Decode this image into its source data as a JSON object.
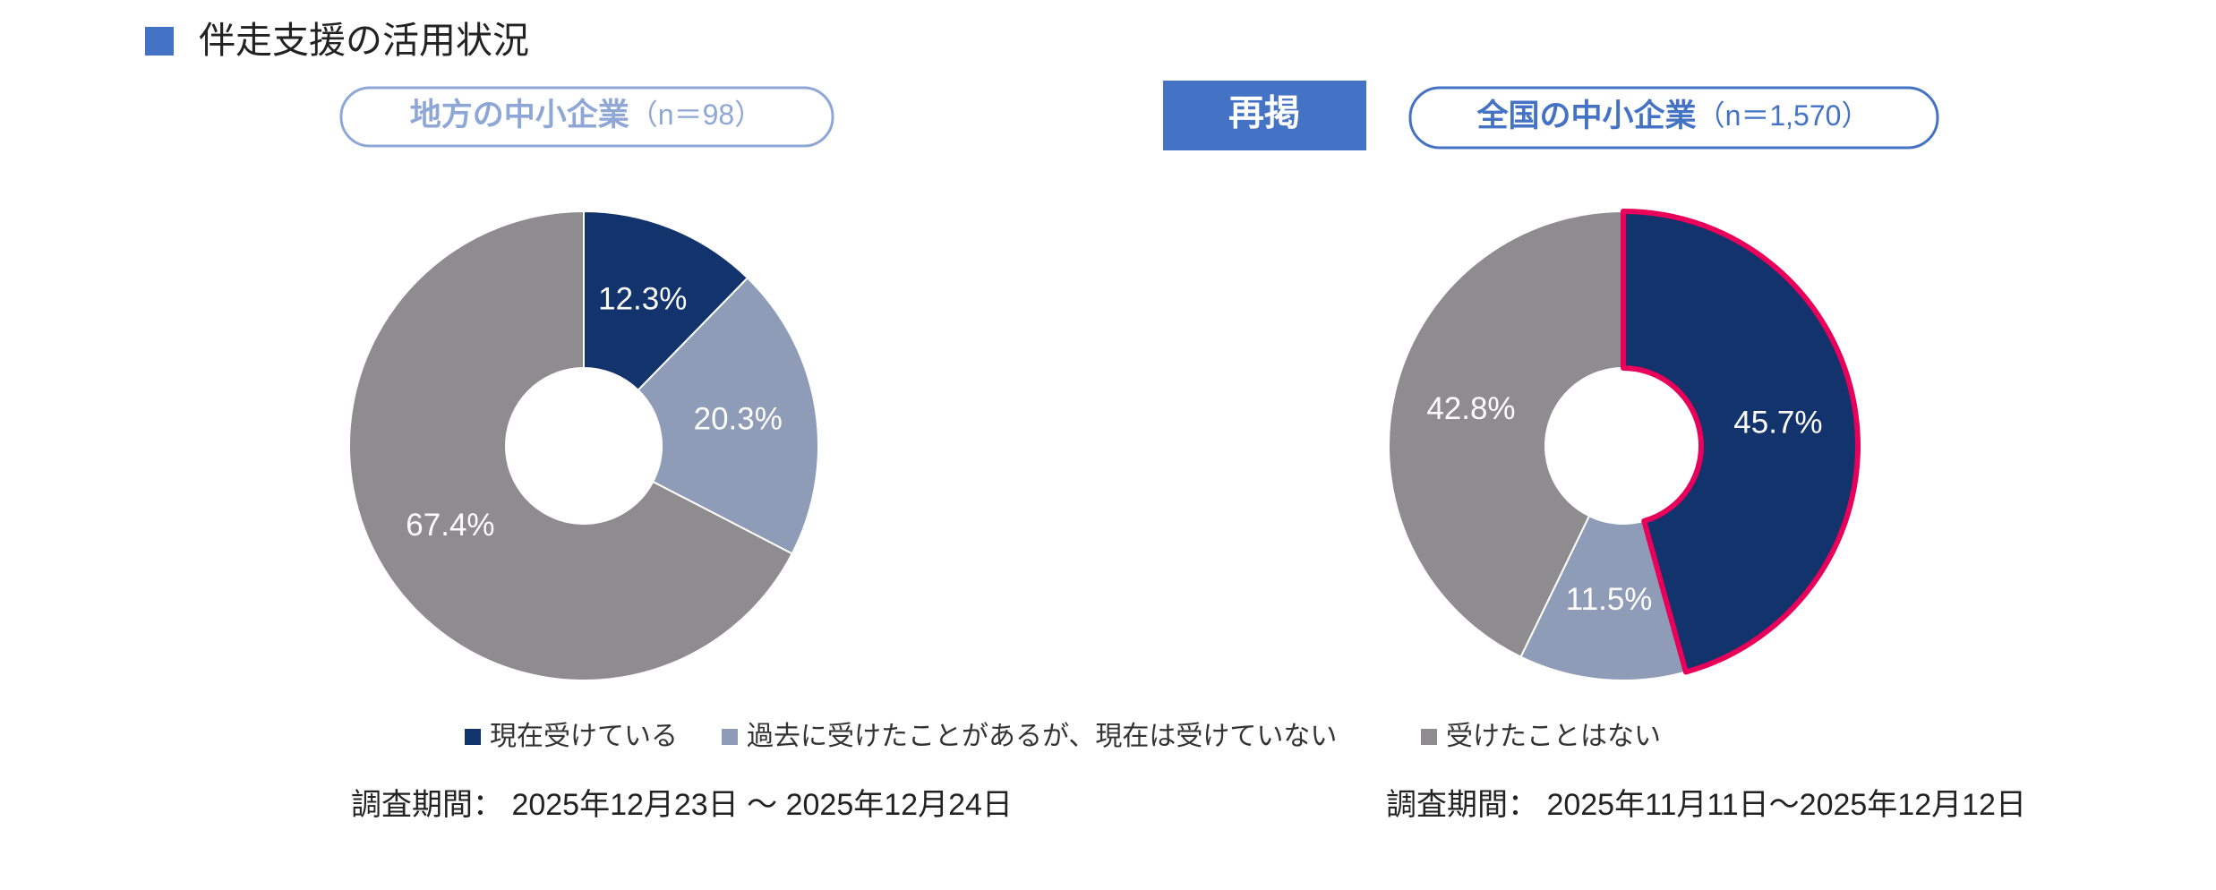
{
  "header": {
    "title": "伴走支援の活用状況"
  },
  "chart_data": [
    {
      "type": "pie",
      "title": "地方の中小企業",
      "subtitle": "（n＝98）",
      "categories": [
        "現在受けている",
        "過去に受けたことがあるが、現在は受けていない",
        "受けたことはない"
      ],
      "values": [
        12.3,
        20.3,
        67.4
      ],
      "value_labels": [
        "12.3%",
        "20.3%",
        "67.4%"
      ],
      "colors": [
        "#12336b",
        "#8e9cb8",
        "#8e8c8f"
      ],
      "note": "調査期間： 2025年12月23日 ～ 2025年12月24日"
    },
    {
      "type": "pie",
      "badge": "再掲",
      "title": "全国の中小企業",
      "subtitle": "（n＝1,570）",
      "categories": [
        "現在受けている",
        "過去に受けたことがあるが、現在は受けていない",
        "受けたことはない"
      ],
      "values": [
        45.7,
        11.5,
        42.8
      ],
      "value_labels": [
        "45.7%",
        "11.5%",
        "42.8%"
      ],
      "colors": [
        "#12336b",
        "#8e9cb8",
        "#8e8c8f"
      ],
      "highlight": 0,
      "highlight_color": "#e8005a",
      "note": "調査期間： 2025年11月11日～2025年12月12日"
    }
  ]
}
